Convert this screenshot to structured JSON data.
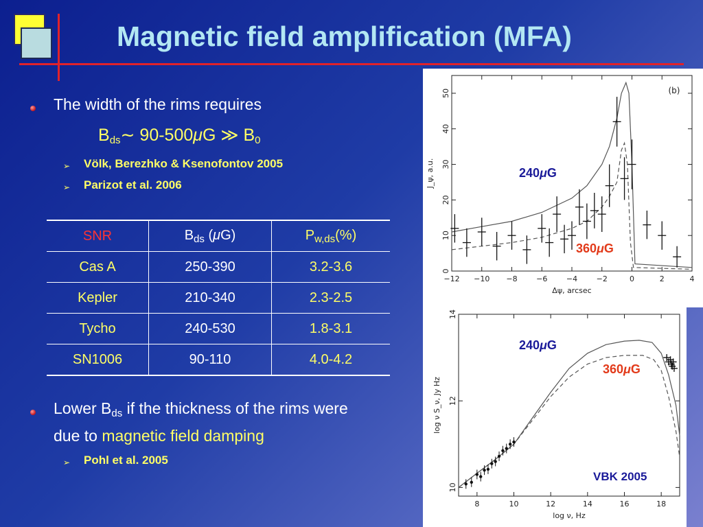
{
  "slide": {
    "title": "Magnetic field amplification (MFA)",
    "bullet1": "The width of the rims requires",
    "equation": {
      "b": "B",
      "sub": "ds",
      "sim": "∼ 90-500",
      "mu": "μ",
      "rest": "G ≫ B",
      "sub0": "0"
    },
    "refs1": [
      "Völk, Berezhko & Ksenofontov 2005",
      "Parizot et al. 2006"
    ],
    "bullet2": {
      "part1": "Lower B",
      "sub": "ds",
      "part2": " if the thickness of the rims were",
      "line2_plain": "due to ",
      "line2_highlight": "magnetic field damping"
    },
    "refs2": [
      "Pohl et al. 2005"
    ],
    "arrow_glyph": "➢"
  },
  "table": {
    "header": {
      "col1": "SNR",
      "col2_b": "B",
      "col2_sub": "ds",
      "col2_open": " (",
      "col2_mu": "μ",
      "col2_close": "G)",
      "col3_p": "P",
      "col3_sub": "w,ds",
      "col3_rest": "(%)"
    },
    "rows": [
      {
        "snr": "Cas A",
        "b": "250-390",
        "p": "3.2-3.6"
      },
      {
        "snr": "Kepler",
        "b": "210-340",
        "p": "2.3-2.5"
      },
      {
        "snr": "Tycho",
        "b": "240-530",
        "p": "1.8-3.1"
      },
      {
        "snr": "SN1006",
        "b": "90-110",
        "p": "4.0-4.2"
      }
    ]
  },
  "chart_data": [
    {
      "type": "line",
      "panel_label": "(b)",
      "xlabel": "Δψ, arcsec",
      "ylabel": "J_ψ, a.u.",
      "xlim": [
        -12,
        4
      ],
      "ylim": [
        0,
        55
      ],
      "xticks": [
        -12,
        -10,
        -8,
        -6,
        -4,
        -2,
        0,
        2,
        4
      ],
      "yticks": [
        0,
        10,
        20,
        30,
        40,
        50
      ],
      "annotations": [
        {
          "text_num": "240",
          "mu": "μ",
          "unit": "G",
          "color": "#1a1a99"
        },
        {
          "text_num": "360",
          "mu": "μ",
          "unit": "G",
          "color": "#e23a1a"
        }
      ],
      "series": [
        {
          "style": "solid",
          "x": [
            -12,
            -10,
            -8,
            -6,
            -4,
            -3,
            -2,
            -1.5,
            -1,
            -0.7,
            -0.4,
            -0.2,
            0,
            0.2,
            4
          ],
          "y": [
            11,
            12.5,
            14,
            16.5,
            20.5,
            24,
            30,
            35,
            43,
            50,
            53,
            50,
            30,
            2,
            1
          ]
        },
        {
          "style": "dashed",
          "x": [
            -12,
            -10,
            -8,
            -6,
            -4,
            -3,
            -2,
            -1.5,
            -1,
            -0.7,
            -0.5,
            -0.3,
            -0.1,
            0.1,
            4
          ],
          "y": [
            6,
            7,
            8,
            9.5,
            12,
            14,
            18,
            21,
            25,
            34,
            36,
            30,
            8,
            1,
            0.5
          ]
        }
      ],
      "points": [
        {
          "x": -11.8,
          "y": 12,
          "ey": 4
        },
        {
          "x": -11,
          "y": 8,
          "ey": 4
        },
        {
          "x": -10,
          "y": 11,
          "ey": 4
        },
        {
          "x": -9,
          "y": 7,
          "ey": 4
        },
        {
          "x": -8,
          "y": 10,
          "ey": 4
        },
        {
          "x": -7,
          "y": 6,
          "ey": 4
        },
        {
          "x": -6,
          "y": 12,
          "ey": 4
        },
        {
          "x": -5.5,
          "y": 8,
          "ey": 4
        },
        {
          "x": -5,
          "y": 16,
          "ey": 5
        },
        {
          "x": -4.5,
          "y": 9,
          "ey": 4
        },
        {
          "x": -4,
          "y": 10,
          "ey": 4
        },
        {
          "x": -3.5,
          "y": 18,
          "ey": 5
        },
        {
          "x": -3,
          "y": 14,
          "ey": 5
        },
        {
          "x": -2.5,
          "y": 17,
          "ey": 5
        },
        {
          "x": -2,
          "y": 16,
          "ey": 5
        },
        {
          "x": -1.5,
          "y": 24,
          "ey": 6
        },
        {
          "x": -1,
          "y": 42,
          "ey": 7
        },
        {
          "x": -0.5,
          "y": 26,
          "ey": 6
        },
        {
          "x": 0,
          "y": 30,
          "ey": 7
        },
        {
          "x": 1,
          "y": 13,
          "ey": 4
        },
        {
          "x": 2,
          "y": 10,
          "ey": 4
        },
        {
          "x": 3,
          "y": 4,
          "ey": 3
        }
      ]
    },
    {
      "type": "line",
      "xlabel": "log ν, Hz",
      "ylabel": "log ν S_ν, Jy Hz",
      "xlim": [
        7,
        19
      ],
      "ylim": [
        9.8,
        14
      ],
      "xticks": [
        8,
        10,
        12,
        14,
        16,
        18
      ],
      "yticks": [
        10,
        12,
        14
      ],
      "annotations": [
        {
          "text_num": "240",
          "mu": "μ",
          "unit": "G",
          "color": "#1a1a99"
        },
        {
          "text_num": "360",
          "mu": "μ",
          "unit": "G",
          "color": "#e23a1a"
        }
      ],
      "credit": "VBK 2005",
      "series": [
        {
          "style": "solid",
          "x": [
            7,
            8,
            9,
            10,
            11,
            12,
            13,
            14,
            15,
            16,
            16.8,
            17.5,
            18,
            18.4,
            18.8,
            19
          ],
          "y": [
            10.0,
            10.33,
            10.65,
            11.0,
            11.6,
            12.2,
            12.75,
            13.1,
            13.3,
            13.38,
            13.4,
            13.35,
            13.1,
            12.6,
            11.9,
            11.2
          ]
        },
        {
          "style": "dashed",
          "x": [
            7,
            8,
            9,
            10,
            11,
            12,
            13,
            14,
            15,
            16,
            17,
            17.6,
            18,
            18.4,
            18.8,
            19
          ],
          "y": [
            10.0,
            10.33,
            10.65,
            11.0,
            11.55,
            12.1,
            12.55,
            12.85,
            13.0,
            13.05,
            13.05,
            12.95,
            12.7,
            12.1,
            11.3,
            10.7
          ]
        }
      ],
      "points_low": [
        {
          "x": 7.4,
          "y": 10.08
        },
        {
          "x": 7.7,
          "y": 10.12
        },
        {
          "x": 8.0,
          "y": 10.3
        },
        {
          "x": 8.2,
          "y": 10.25
        },
        {
          "x": 8.4,
          "y": 10.4
        },
        {
          "x": 8.6,
          "y": 10.42
        },
        {
          "x": 8.8,
          "y": 10.55
        },
        {
          "x": 9.0,
          "y": 10.6
        },
        {
          "x": 9.2,
          "y": 10.72
        },
        {
          "x": 9.4,
          "y": 10.85
        },
        {
          "x": 9.6,
          "y": 10.9
        },
        {
          "x": 9.8,
          "y": 11.0
        },
        {
          "x": 10.0,
          "y": 11.05
        }
      ],
      "points_high": [
        {
          "x": 18.3,
          "y": 13.0
        },
        {
          "x": 18.4,
          "y": 12.9
        },
        {
          "x": 18.5,
          "y": 12.95
        },
        {
          "x": 18.55,
          "y": 12.85
        },
        {
          "x": 18.6,
          "y": 12.8
        },
        {
          "x": 18.65,
          "y": 12.9
        },
        {
          "x": 18.7,
          "y": 12.75
        }
      ]
    }
  ]
}
